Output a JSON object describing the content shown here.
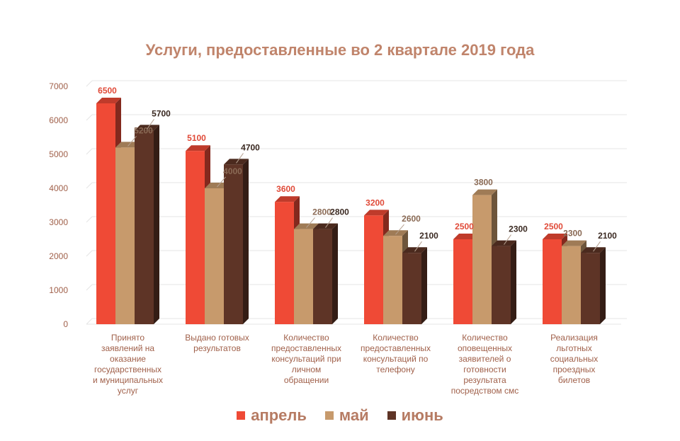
{
  "chart_data": {
    "type": "bar",
    "title": "Услуги, предоставленные во 2 квартале 2019 года",
    "categories": [
      [
        "Принято",
        "заявлений  на",
        "оказание",
        "государственных",
        "и муниципальных",
        "услуг"
      ],
      [
        "Выдано готовых",
        "результатов"
      ],
      [
        "Количество",
        "предоставленных",
        "консультаций  при",
        "личном",
        "обращении"
      ],
      [
        "Количество",
        "предоставленных",
        "консультаций    по",
        "телефону"
      ],
      [
        "Количество",
        "оповещенных",
        "заявителей  о",
        "готовности",
        "результата",
        "посредством  смс"
      ],
      [
        "Реализация",
        "льготных",
        "социальных",
        "проездных",
        "билетов"
      ]
    ],
    "series": [
      {
        "name": "апрель",
        "color": "#ef4a36",
        "label_color": "#e04a38",
        "values": [
          6500,
          5100,
          3600,
          3200,
          2500,
          2500
        ]
      },
      {
        "name": "май",
        "color": "#c79a6c",
        "label_color": "#8a6a55",
        "values": [
          5200,
          4000,
          2800,
          2600,
          3800,
          2300
        ]
      },
      {
        "name": "июнь",
        "color": "#5e3426",
        "label_color": "#3b2a22",
        "values": [
          5700,
          4700,
          2800,
          2100,
          2300,
          2100
        ]
      }
    ],
    "y_ticks": [
      "0",
      "1000",
      "2000",
      "3000",
      "4000",
      "5000",
      "6000",
      "7000"
    ],
    "ylim": [
      0,
      7000
    ],
    "grid": true,
    "legend_position": "bottom"
  }
}
